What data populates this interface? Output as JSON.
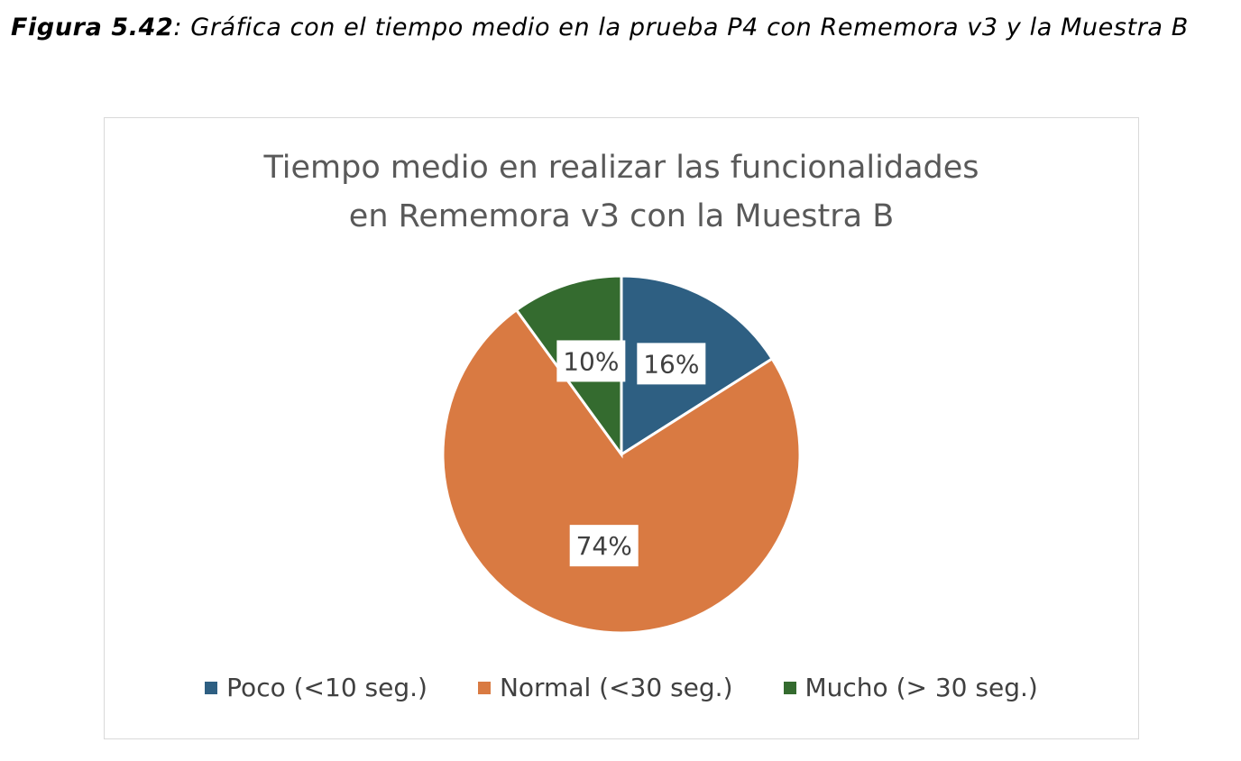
{
  "caption": {
    "label": "Figura 5.42",
    "separator": ":",
    "text": " Gráfica con el tiempo medio en la prueba P4 con Rememora v3 y la Muestra B"
  },
  "chart_data": {
    "type": "pie",
    "title_lines": [
      "Tiempo medio en realizar las funcionalidades",
      "en Rememora v3 con la Muestra B"
    ],
    "legend_position": "bottom",
    "slices": [
      {
        "label": "Poco (<10 seg.)",
        "value": 16,
        "data_label": "16%",
        "color": "#2e5f82"
      },
      {
        "label": "Normal (<30 seg.)",
        "value": 74,
        "data_label": "74%",
        "color": "#d97a42"
      },
      {
        "label": "Mucho (> 30 seg.)",
        "value": 10,
        "data_label": "10%",
        "color": "#346b2f"
      }
    ]
  }
}
